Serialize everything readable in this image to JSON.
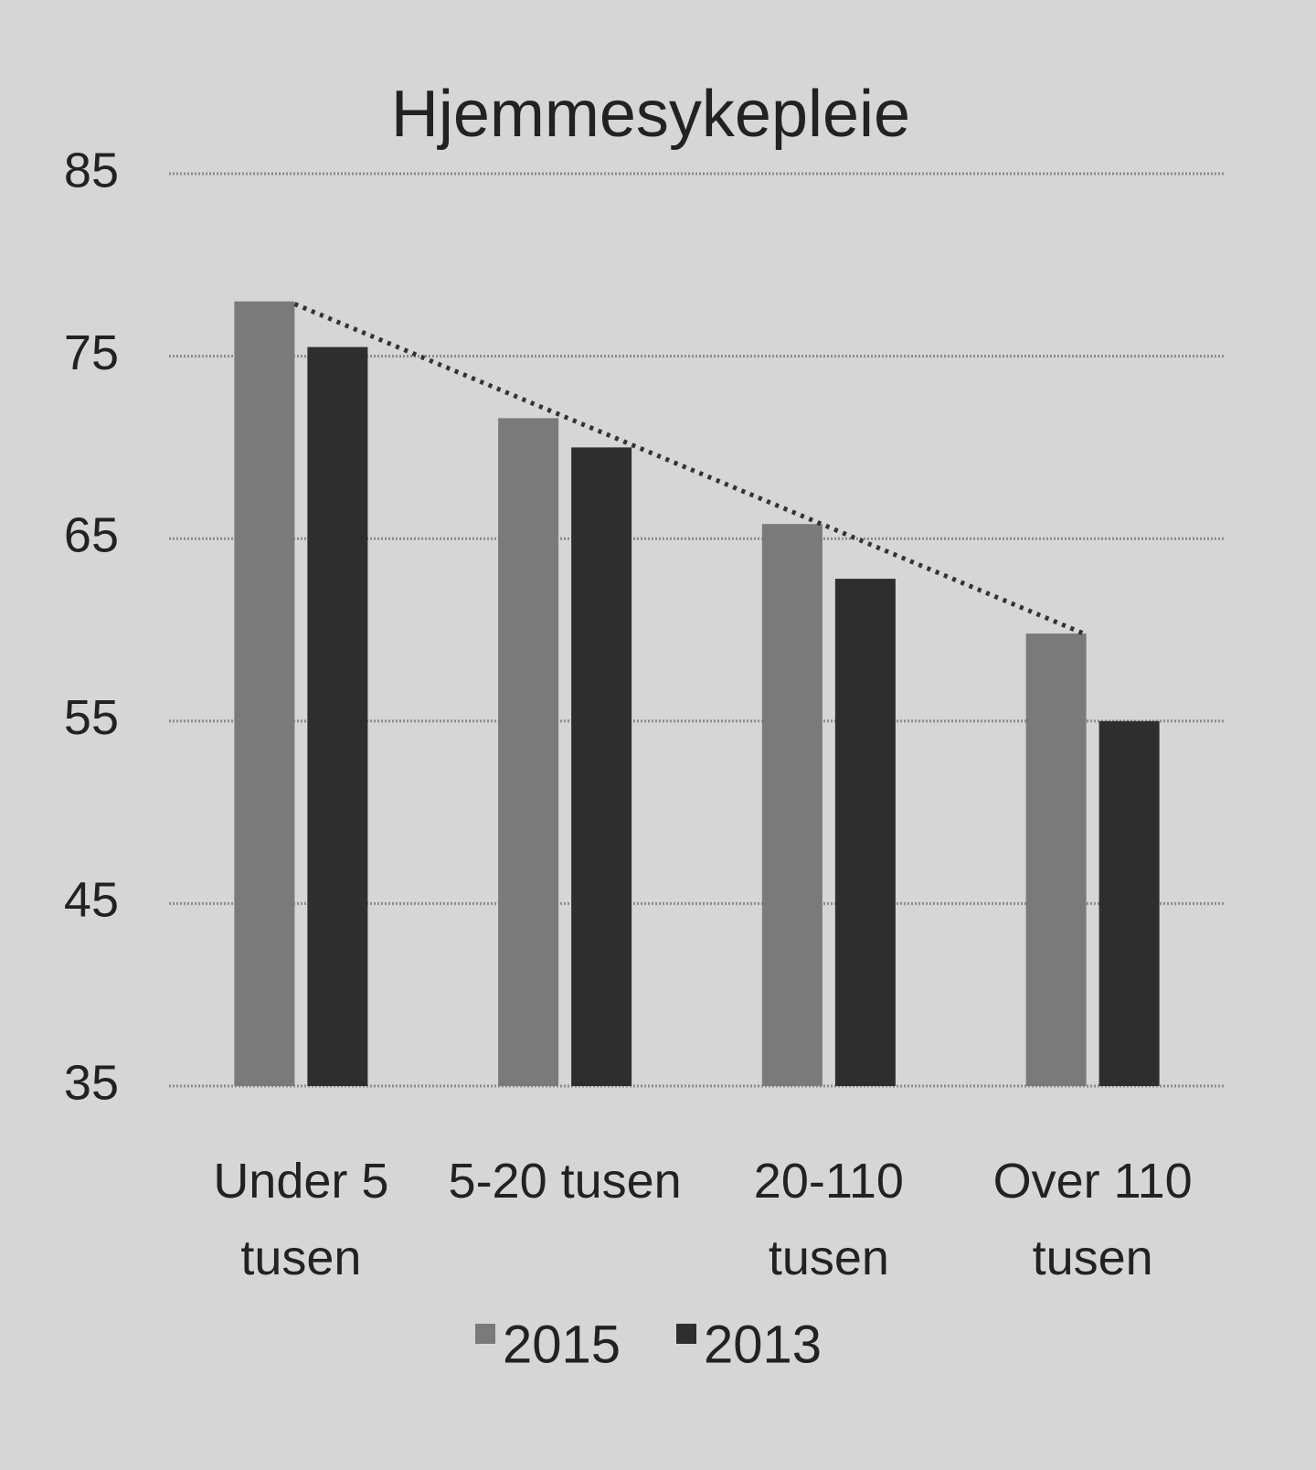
{
  "chart_data": {
    "type": "bar",
    "title": "Hjemmesykepleie",
    "categories": [
      "Under 5 tusen",
      "5-20 tusen",
      "20-110 tusen",
      "Over 110 tusen"
    ],
    "series": [
      {
        "name": "2015",
        "color": "#7a7a7a",
        "values": [
          78,
          71.6,
          65.8,
          59.8
        ]
      },
      {
        "name": "2013",
        "color": "#2e2e2e",
        "values": [
          75.5,
          70,
          62.8,
          55
        ]
      }
    ],
    "ylim": [
      35,
      85
    ],
    "yticks": [
      35,
      45,
      55,
      65,
      75,
      85
    ],
    "grid": true,
    "trendline": true,
    "legend": "bottom"
  }
}
